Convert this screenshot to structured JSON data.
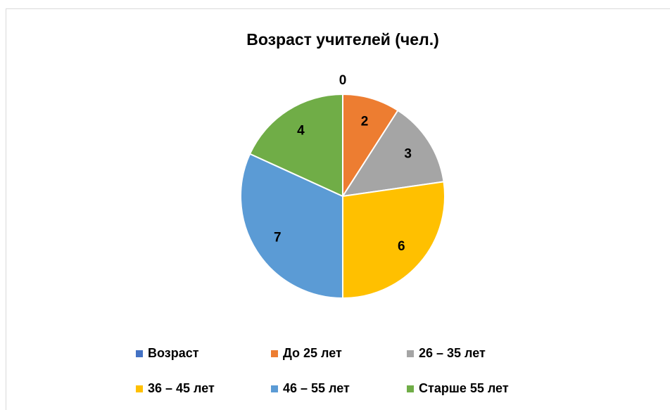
{
  "chart_data": {
    "type": "pie",
    "title": "Возраст учителей (чел.)",
    "categories": [
      "Возраст",
      "До 25 лет",
      "26 – 35 лет",
      "36 – 45 лет",
      "46 – 55 лет",
      "Старше 55 лет"
    ],
    "values": [
      0,
      2,
      3,
      6,
      7,
      4
    ],
    "colors": [
      "#4472c4",
      "#ed7d31",
      "#a5a5a5",
      "#ffc000",
      "#5b9bd5",
      "#70ad47"
    ],
    "legend": "bottom"
  }
}
